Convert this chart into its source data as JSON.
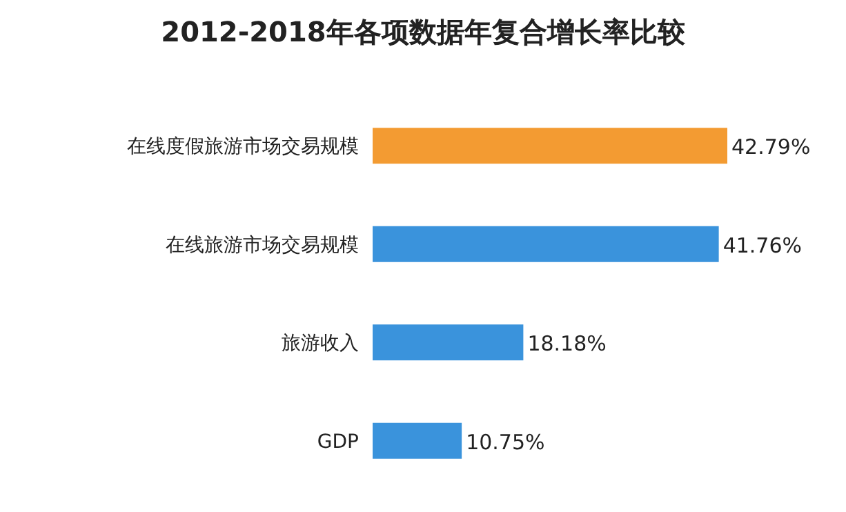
{
  "chart_data": {
    "type": "bar",
    "orientation": "horizontal",
    "title": "2012-2018年各项数据年复合增长率比较",
    "categories": [
      "在线度假旅游市场交易规模",
      "在线旅游市场交易规模",
      "旅游收入",
      "GDP"
    ],
    "values": [
      42.79,
      41.76,
      18.18,
      10.75
    ],
    "colors": [
      "#f39b32",
      "#3a93dc",
      "#3a93dc",
      "#3a93dc"
    ],
    "value_labels": [
      "42.79%",
      "41.76%",
      "18.18%",
      "10.75%"
    ]
  }
}
